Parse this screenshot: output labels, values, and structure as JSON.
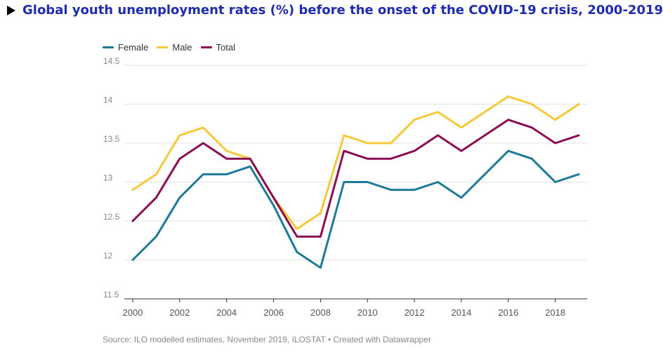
{
  "title": "Global youth unemployment rates (%) before the onset of the COVID-19 crisis, 2000-2019",
  "source": "Source: ILO modelled estimates, November 2019, ILOSTAT • Created with Datawrapper",
  "chart_data": {
    "type": "line",
    "title": "Global youth unemployment rates (%) before the onset of the COVID-19 crisis, 2000-2019",
    "xlabel": "",
    "ylabel": "",
    "x": [
      2000,
      2001,
      2002,
      2003,
      2004,
      2005,
      2006,
      2007,
      2008,
      2009,
      2010,
      2011,
      2012,
      2013,
      2014,
      2015,
      2016,
      2017,
      2018,
      2019
    ],
    "xlim": [
      2000,
      2019
    ],
    "ylim": [
      11.5,
      14.5
    ],
    "xticks": [
      2000,
      2002,
      2004,
      2006,
      2008,
      2010,
      2012,
      2014,
      2016,
      2018
    ],
    "xtick_labels": [
      "2000",
      "2002",
      "2004",
      "2006",
      "2008",
      "2010",
      "2012",
      "2014",
      "2016",
      "2018"
    ],
    "yticks": [
      11.5,
      12,
      12.5,
      13,
      13.5,
      14,
      14.5
    ],
    "ytick_labels": [
      "11.5",
      "12",
      "12.5",
      "13",
      "13.5",
      "14",
      "14.5"
    ],
    "grid": true,
    "legend_position": "top-left",
    "series": [
      {
        "name": "Female",
        "color": "#1d7a99",
        "values": [
          12.0,
          12.3,
          12.8,
          13.1,
          13.1,
          13.2,
          12.7,
          12.1,
          11.9,
          13.0,
          13.0,
          12.9,
          12.9,
          13.0,
          12.8,
          13.1,
          13.4,
          13.3,
          13.0,
          13.1
        ]
      },
      {
        "name": "Male",
        "color": "#f5c93a",
        "values": [
          12.9,
          13.1,
          13.6,
          13.7,
          13.4,
          13.3,
          12.8,
          12.4,
          12.6,
          13.6,
          13.5,
          13.5,
          13.8,
          13.9,
          13.7,
          13.9,
          14.1,
          14.0,
          13.8,
          14.0
        ]
      },
      {
        "name": "Total",
        "color": "#8c0d52",
        "values": [
          12.5,
          12.8,
          13.3,
          13.5,
          13.3,
          13.3,
          12.8,
          12.3,
          12.3,
          13.4,
          13.3,
          13.3,
          13.4,
          13.6,
          13.4,
          13.6,
          13.8,
          13.7,
          13.5,
          13.6
        ]
      }
    ]
  }
}
